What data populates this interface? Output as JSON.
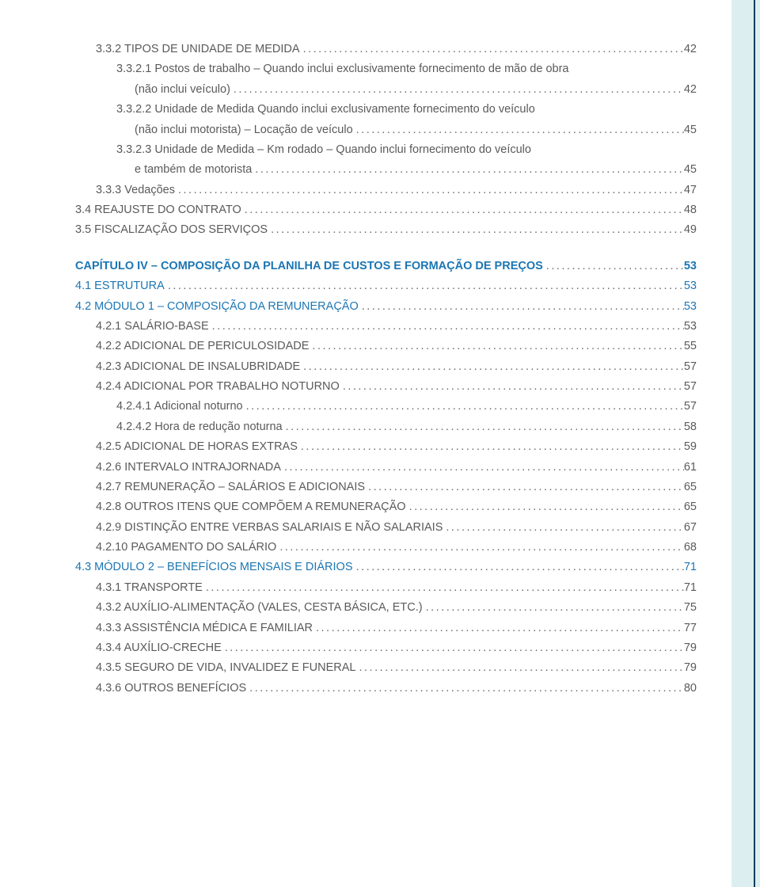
{
  "text_color": "#5a5a5a",
  "blue_color": "#1c76b3",
  "band_bg": "#dceef0",
  "band_stripe": "#0d3e5c",
  "font_size": 14.5,
  "lines": [
    {
      "level": "l1",
      "label": "3.3.2 TIPOS DE UNIDADE DE MEDIDA",
      "page": "42"
    },
    {
      "level": "l2",
      "label": "3.3.2.1 Postos de trabalho – Quando inclui exclusivamente fornecimento de mão de obra",
      "nopage": true
    },
    {
      "level": "l2c",
      "label": "(não inclui veículo)",
      "page": "42"
    },
    {
      "level": "l2",
      "label": "3.3.2.2 Unidade de Medida Quando inclui exclusivamente fornecimento do veículo",
      "nopage": true
    },
    {
      "level": "l2c",
      "label": "(não inclui motorista) – Locação de veículo",
      "page": "45"
    },
    {
      "level": "l2",
      "label": "3.3.2.3 Unidade de Medida – Km rodado – Quando inclui fornecimento do veículo",
      "nopage": true
    },
    {
      "level": "l2c",
      "label": "e também de motorista",
      "page": "45"
    },
    {
      "level": "l1",
      "label": "3.3.3 Vedações",
      "page": "47"
    },
    {
      "level": "l0",
      "label": "3.4 REAJUSTE DO CONTRATO",
      "page": "48"
    },
    {
      "level": "l0",
      "label": "3.5 FISCALIZAÇÃO DOS SERVIÇOS",
      "page": "49"
    },
    {
      "spacer": true
    },
    {
      "level": "l0",
      "chapter": true,
      "label": "CAPÍTULO IV – COMPOSIÇÃO DA PLANILHA DE CUSTOS E FORMAÇÃO DE PREÇOS",
      "page": "53"
    },
    {
      "level": "l0",
      "blue": true,
      "label": "4.1 ESTRUTURA",
      "page": "53"
    },
    {
      "level": "l0",
      "blue": true,
      "label": "4.2 MÓDULO 1 – COMPOSIÇÃO DA REMUNERAÇÃO",
      "page": "53"
    },
    {
      "level": "l1",
      "label": "4.2.1 SALÁRIO-BASE",
      "page": "53"
    },
    {
      "level": "l1",
      "label": "4.2.2 ADICIONAL DE PERICULOSIDADE",
      "page": "55"
    },
    {
      "level": "l1",
      "label": "4.2.3 ADICIONAL DE INSALUBRIDADE",
      "page": "57"
    },
    {
      "level": "l1",
      "label": "4.2.4 ADICIONAL POR TRABALHO NOTURNO",
      "page": "57"
    },
    {
      "level": "l2",
      "label": "4.2.4.1 Adicional noturno",
      "page": "57"
    },
    {
      "level": "l2",
      "label": "4.2.4.2 Hora de redução noturna",
      "page": "58"
    },
    {
      "level": "l1",
      "label": "4.2.5 ADICIONAL DE HORAS EXTRAS",
      "page": "59"
    },
    {
      "level": "l1",
      "label": "4.2.6 INTERVALO INTRAJORNADA",
      "page": "61"
    },
    {
      "level": "l1",
      "label": "4.2.7 REMUNERAÇÃO – SALÁRIOS E ADICIONAIS",
      "page": "65"
    },
    {
      "level": "l1",
      "label": "4.2.8 OUTROS ITENS QUE COMPÕEM A REMUNERAÇÃO",
      "page": "65"
    },
    {
      "level": "l1",
      "label": "4.2.9 DISTINÇÃO ENTRE VERBAS SALARIAIS E NÃO SALARIAIS",
      "page": "67"
    },
    {
      "level": "l1",
      "label": "4.2.10 PAGAMENTO DO SALÁRIO",
      "page": "68"
    },
    {
      "level": "l0",
      "blue": true,
      "label": "4.3 MÓDULO 2 – BENEFÍCIOS MENSAIS E DIÁRIOS",
      "page": "71"
    },
    {
      "level": "l1",
      "label": "4.3.1 TRANSPORTE",
      "page": "71"
    },
    {
      "level": "l1",
      "label": "4.3.2 AUXÍLIO-ALIMENTAÇÃO (VALES, CESTA BÁSICA, ETC.)",
      "page": "75"
    },
    {
      "level": "l1",
      "label": "4.3.3 ASSISTÊNCIA MÉDICA E FAMILIAR",
      "page": "77"
    },
    {
      "level": "l1",
      "label": "4.3.4 AUXÍLIO-CRECHE",
      "page": "79"
    },
    {
      "level": "l1",
      "label": "4.3.5 SEGURO DE VIDA, INVALIDEZ E FUNERAL",
      "page": "79"
    },
    {
      "level": "l1",
      "label": "4.3.6 OUTROS BENEFÍCIOS",
      "page": "80"
    }
  ]
}
